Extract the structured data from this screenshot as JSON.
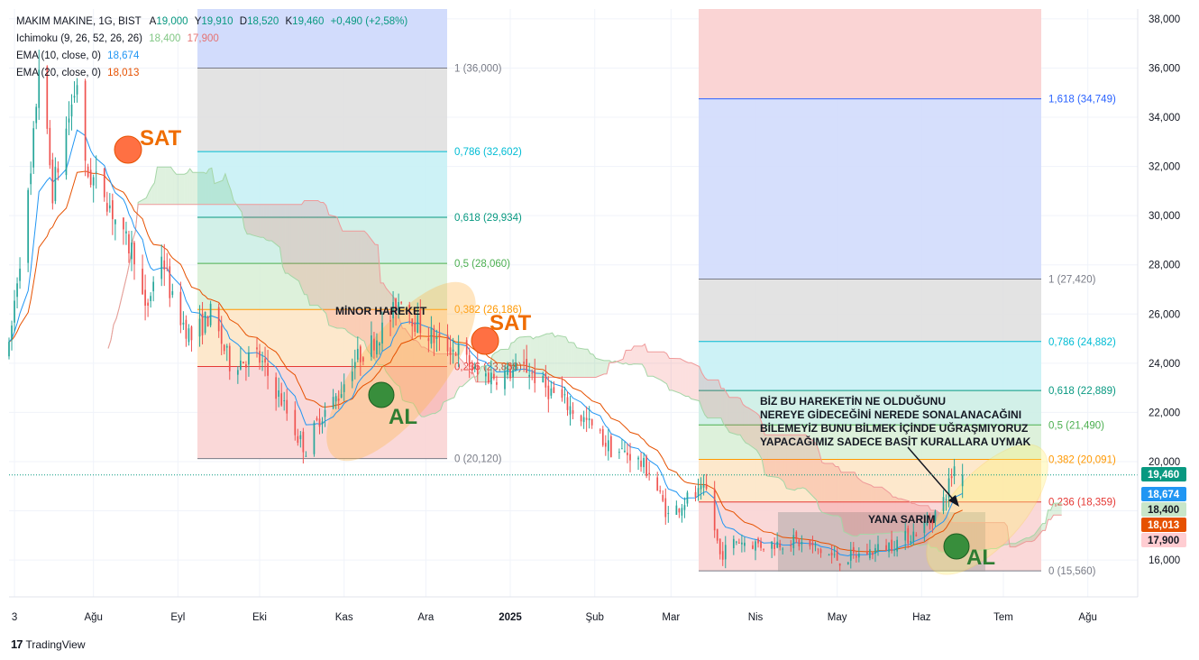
{
  "legend": {
    "symbol": "MAKIM MAKINE, 1G, BIST",
    "ohlc": [
      {
        "label": "A",
        "value": "19,000"
      },
      {
        "label": "Y",
        "value": "19,910"
      },
      {
        "label": "D",
        "value": "18,520"
      },
      {
        "label": "K",
        "value": "19,460"
      }
    ],
    "change": "+0,490 (+2,58%)",
    "ichimoku": {
      "label": "Ichimoku (9, 26, 52, 26, 26)",
      "v1": "18,400",
      "v2": "17,900"
    },
    "ema10": {
      "label": "EMA (10, close, 0)",
      "value": "18,674"
    },
    "ema20": {
      "label": "EMA (20, close, 0)",
      "value": "18,013"
    }
  },
  "colors": {
    "up": "#26a69a",
    "down": "#ef5350",
    "ema10": "#2196f3",
    "ema20": "#e65100",
    "cloud_green": "#4caf50",
    "cloud_red": "#ef5350",
    "sat": "#ef6c00",
    "al": "#2e7d32"
  },
  "price_tags": [
    {
      "value": 19.46,
      "label": "19,460",
      "bg": "#089981"
    },
    {
      "value": 18.674,
      "label": "18,674",
      "bg": "#2196f3"
    },
    {
      "value": 18.4,
      "label": "18,400",
      "bg": "#c8e6c9",
      "fg": "#131722"
    },
    {
      "value": 18.013,
      "label": "18,013",
      "bg": "#e65100"
    },
    {
      "value": 17.9,
      "label": "17,900",
      "bg": "#ffcdd2",
      "fg": "#131722"
    }
  ],
  "fib_sets": [
    {
      "levels": [
        {
          "ratio": "1",
          "price": 36.0,
          "label": "1 (36,000)",
          "color": "#787b86",
          "fill": "#e0e0e0"
        },
        {
          "ratio": "0,786",
          "price": 32.602,
          "label": "0,786 (32,602)",
          "color": "#00bcd4",
          "fill": "#c8f1f5"
        },
        {
          "ratio": "0,618",
          "price": 29.934,
          "label": "0,618 (29,934)",
          "color": "#089981",
          "fill": "#cdeee6"
        },
        {
          "ratio": "0,5",
          "price": 28.06,
          "label": "0,5 (28,060)",
          "color": "#4caf50",
          "fill": "#d9efd7"
        },
        {
          "ratio": "0,382",
          "price": 26.186,
          "label": "0,382 (26,186)",
          "color": "#ff9800",
          "fill": "#fde6c6"
        },
        {
          "ratio": "0,236",
          "price": 23.868,
          "label": "0,236 (23,868)",
          "color": "#e53935",
          "fill": "#f9d4d4"
        },
        {
          "ratio": "0",
          "price": 20.12,
          "label": "0 (20,120)",
          "color": "#787b86"
        }
      ]
    },
    {
      "levels": [
        {
          "ratio": "1,618",
          "price": 34.749,
          "label": "1,618 (34,749)",
          "color": "#2962ff",
          "fill": "#d2dcfc"
        },
        {
          "ratio": "1",
          "price": 27.42,
          "label": "1 (27,420)",
          "color": "#787b86",
          "fill": "#e0e0e0"
        },
        {
          "ratio": "0,786",
          "price": 24.882,
          "label": "0,786 (24,882)",
          "color": "#00bcd4",
          "fill": "#c8f1f5"
        },
        {
          "ratio": "0,618",
          "price": 22.889,
          "label": "0,618 (22,889)",
          "color": "#089981",
          "fill": "#cdeee6"
        },
        {
          "ratio": "0,5",
          "price": 21.49,
          "label": "0,5 (21,490)",
          "color": "#4caf50",
          "fill": "#d9efd7"
        },
        {
          "ratio": "0,382",
          "price": 20.091,
          "label": "0,382 (20,091)",
          "color": "#ff9800",
          "fill": "#fde6c6"
        },
        {
          "ratio": "0,236",
          "price": 18.359,
          "label": "0,236 (18,359)",
          "color": "#e53935",
          "fill": "#f9d4d4"
        },
        {
          "ratio": "0",
          "price": 15.56,
          "label": "0 (15,560)",
          "color": "#787b86"
        }
      ]
    }
  ],
  "annotations": {
    "minor": "MİNOR HAREKET",
    "sat": "SAT",
    "al": "AL",
    "yana": "YANA SARIM",
    "note": [
      "BİZ BU HAREKETİN NE OLDUĞUNU",
      "NEREYE GİDECEĞİNİ NEREDE SONALANACAĞINI",
      "BİLEMEYİZ BUNU BİLMEK İÇİNDE UĞRAŞMIYORUZ",
      "YAPACAĞIMIZ SADECE BASİT KURALLARA UYMAK"
    ]
  },
  "footer": {
    "brand": "TradingView"
  },
  "chart_data": {
    "type": "candlestick",
    "title": "MAKIM MAKINE, 1G, BIST",
    "y_axis": {
      "ticks": [
        "16,000",
        "18,000",
        "20,000",
        "22,000",
        "24,000",
        "26,000",
        "28,000",
        "30,000",
        "32,000",
        "34,000",
        "36,000",
        "38,000"
      ],
      "ylim": [
        14.5,
        38.4
      ],
      "last_price": 19.46
    },
    "x_axis": {
      "ticks": [
        "3",
        "Ağu",
        "Eyl",
        "Eki",
        "Kas",
        "Ara",
        "2025",
        "Şub",
        "Mar",
        "Nis",
        "May",
        "Haz",
        "Tem",
        "Ağu"
      ],
      "bold_ticks": [
        "2025"
      ],
      "range": [
        "2024-07-01",
        "2025-08-16"
      ],
      "tick_dates": [
        "2024-07-03",
        "2024-08-01",
        "2024-09-01",
        "2024-10-01",
        "2024-11-01",
        "2024-12-01",
        "2025-01-01",
        "2025-02-01",
        "2025-03-01",
        "2025-04-01",
        "2025-05-01",
        "2025-06-01",
        "2025-07-01",
        "2025-08-01"
      ]
    },
    "price_path": [
      [
        "2024-07-01",
        24.5
      ],
      [
        "2024-07-04",
        27.5
      ],
      [
        "2024-07-09",
        31.5
      ],
      [
        "2024-07-12",
        36.2
      ],
      [
        "2024-07-17",
        31.0
      ],
      [
        "2024-07-19",
        32.0
      ],
      [
        "2024-07-22",
        33.5
      ],
      [
        "2024-07-26",
        35.5
      ],
      [
        "2024-07-29",
        31.8
      ],
      [
        "2024-08-05",
        31.0
      ],
      [
        "2024-08-12",
        29.0
      ],
      [
        "2024-08-16",
        28.5
      ],
      [
        "2024-08-20",
        26.0
      ],
      [
        "2024-08-26",
        28.5
      ],
      [
        "2024-08-30",
        26.5
      ],
      [
        "2024-09-06",
        25.0
      ],
      [
        "2024-09-13",
        26.0
      ],
      [
        "2024-09-20",
        24.0
      ],
      [
        "2024-09-30",
        24.3
      ],
      [
        "2024-10-09",
        22.5
      ],
      [
        "2024-10-15",
        21.0
      ],
      [
        "2024-10-18",
        20.5
      ],
      [
        "2024-10-23",
        21.8
      ],
      [
        "2024-10-30",
        22.7
      ],
      [
        "2024-11-04",
        24.0
      ],
      [
        "2024-11-11",
        24.8
      ],
      [
        "2024-11-18",
        25.8
      ],
      [
        "2024-11-22",
        26.8
      ],
      [
        "2024-11-27",
        25.7
      ],
      [
        "2024-12-06",
        24.8
      ],
      [
        "2024-12-13",
        24.5
      ],
      [
        "2024-12-20",
        23.5
      ],
      [
        "2024-12-27",
        23.5
      ],
      [
        "2025-01-07",
        23.8
      ],
      [
        "2025-01-14",
        23.0
      ],
      [
        "2025-01-22",
        22.3
      ],
      [
        "2025-01-30",
        21.5
      ],
      [
        "2025-02-07",
        20.5
      ],
      [
        "2025-02-14",
        20.3
      ],
      [
        "2025-02-21",
        19.6
      ],
      [
        "2025-02-28",
        17.8
      ],
      [
        "2025-03-07",
        18.5
      ],
      [
        "2025-03-14",
        18.8
      ],
      [
        "2025-03-19",
        16.2
      ],
      [
        "2025-03-25",
        16.8
      ],
      [
        "2025-04-04",
        16.6
      ],
      [
        "2025-04-14",
        16.8
      ],
      [
        "2025-04-22",
        16.5
      ],
      [
        "2025-05-02",
        16.0
      ],
      [
        "2025-05-12",
        16.3
      ],
      [
        "2025-05-20",
        16.6
      ],
      [
        "2025-05-28",
        17.0
      ],
      [
        "2025-06-04",
        17.6
      ],
      [
        "2025-06-09",
        18.4
      ],
      [
        "2025-06-13",
        19.8
      ],
      [
        "2025-06-16",
        19.46
      ]
    ],
    "indicators": [
      "Ichimoku (9, 26, 52, 26, 26)",
      "EMA (10, close, 0)",
      "EMA (20, close, 0)"
    ]
  }
}
